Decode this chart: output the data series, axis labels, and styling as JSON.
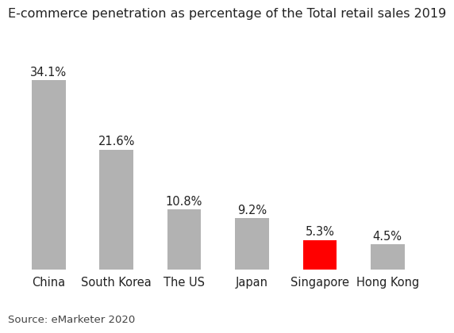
{
  "title": "E-commerce penetration as percentage of the Total retail sales 2019",
  "categories": [
    "China",
    "South Korea",
    "The US",
    "Japan",
    "Singapore",
    "Hong Kong"
  ],
  "values": [
    34.1,
    21.6,
    10.8,
    9.2,
    5.3,
    4.5
  ],
  "labels": [
    "34.1%",
    "21.6%",
    "10.8%",
    "9.2%",
    "5.3%",
    "4.5%"
  ],
  "bar_colors": [
    "#b2b2b2",
    "#b2b2b2",
    "#b2b2b2",
    "#b2b2b2",
    "#ff0000",
    "#b2b2b2"
  ],
  "source": "Source: eMarketer 2020",
  "background_color": "#ffffff",
  "title_fontsize": 11.5,
  "label_fontsize": 10.5,
  "category_fontsize": 10.5,
  "source_fontsize": 9.5,
  "ylim": [
    0,
    40
  ]
}
